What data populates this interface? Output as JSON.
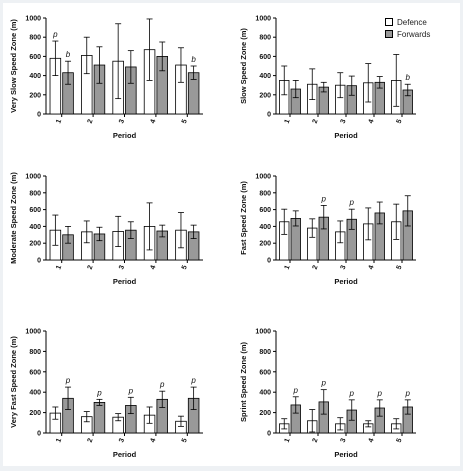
{
  "legend": {
    "defence_label": "Defence",
    "forwards_label": "Forwards",
    "colors": {
      "defence": "#ffffff",
      "forwards": "#999999"
    }
  },
  "chart_data": [
    {
      "type": "bar",
      "ylabel": "Very Slow Speed Zone (m)",
      "xlabel": "Period",
      "categories": [
        "1",
        "2",
        "3",
        "4",
        "5"
      ],
      "ylim": [
        0,
        1000
      ],
      "yticks": [
        0,
        200,
        400,
        600,
        800,
        1000
      ],
      "series": [
        {
          "name": "Defence",
          "values": [
            580,
            610,
            550,
            670,
            510
          ],
          "errors": [
            180,
            190,
            390,
            320,
            180
          ]
        },
        {
          "name": "Forwards",
          "values": [
            430,
            510,
            490,
            600,
            430
          ],
          "errors": [
            120,
            190,
            170,
            150,
            70
          ]
        }
      ],
      "annotations": [
        {
          "category": "1",
          "series": "Defence",
          "text": "p"
        },
        {
          "category": "1",
          "series": "Forwards",
          "text": "b"
        },
        {
          "category": "5",
          "series": "Forwards",
          "text": "b"
        }
      ]
    },
    {
      "type": "bar",
      "ylabel": "Slow Speed Zone (m)",
      "xlabel": "Period",
      "categories": [
        "1",
        "2",
        "3",
        "4",
        "5"
      ],
      "ylim": [
        0,
        1000
      ],
      "yticks": [
        0,
        200,
        400,
        600,
        800,
        1000
      ],
      "series": [
        {
          "name": "Defence",
          "values": [
            350,
            310,
            300,
            325,
            350
          ],
          "errors": [
            150,
            160,
            130,
            200,
            270
          ]
        },
        {
          "name": "Forwards",
          "values": [
            260,
            280,
            295,
            330,
            250
          ],
          "errors": [
            90,
            50,
            100,
            60,
            60
          ]
        }
      ],
      "annotations": [
        {
          "category": "5",
          "series": "Forwards",
          "text": "b"
        }
      ]
    },
    {
      "type": "bar",
      "ylabel": "Moderate Speed Zone (m)",
      "xlabel": "Period",
      "categories": [
        "1",
        "2",
        "3",
        "4",
        "5"
      ],
      "ylim": [
        0,
        1000
      ],
      "yticks": [
        0,
        200,
        400,
        600,
        800,
        1000
      ],
      "series": [
        {
          "name": "Defence",
          "values": [
            355,
            335,
            340,
            400,
            355
          ],
          "errors": [
            180,
            130,
            180,
            280,
            210
          ]
        },
        {
          "name": "Forwards",
          "values": [
            300,
            310,
            355,
            345,
            335
          ],
          "errors": [
            100,
            80,
            100,
            70,
            80
          ]
        }
      ],
      "annotations": []
    },
    {
      "type": "bar",
      "ylabel": "Fast Speed Zone (m)",
      "xlabel": "Period",
      "categories": [
        "1",
        "2",
        "3",
        "4",
        "5"
      ],
      "ylim": [
        0,
        1000
      ],
      "yticks": [
        0,
        200,
        400,
        600,
        800,
        1000
      ],
      "series": [
        {
          "name": "Defence",
          "values": [
            455,
            380,
            335,
            430,
            455
          ],
          "errors": [
            150,
            110,
            130,
            190,
            210
          ]
        },
        {
          "name": "Forwards",
          "values": [
            495,
            510,
            485,
            560,
            585
          ],
          "errors": [
            90,
            140,
            120,
            130,
            180
          ]
        }
      ],
      "annotations": [
        {
          "category": "2",
          "series": "Forwards",
          "text": "p"
        },
        {
          "category": "3",
          "series": "Forwards",
          "text": "p"
        }
      ]
    },
    {
      "type": "bar",
      "ylabel": "Very Fast Speed Zone (m)",
      "xlabel": "Period",
      "categories": [
        "1",
        "2",
        "3",
        "4",
        "5"
      ],
      "ylim": [
        0,
        1000
      ],
      "yticks": [
        0,
        200,
        400,
        600,
        800,
        1000
      ],
      "series": [
        {
          "name": "Defence",
          "values": [
            195,
            160,
            155,
            175,
            115
          ],
          "errors": [
            60,
            50,
            35,
            80,
            50
          ]
        },
        {
          "name": "Forwards",
          "values": [
            340,
            300,
            270,
            330,
            340
          ],
          "errors": [
            110,
            30,
            80,
            80,
            110
          ]
        }
      ],
      "annotations": [
        {
          "category": "1",
          "series": "Forwards",
          "text": "p"
        },
        {
          "category": "2",
          "series": "Forwards",
          "text": "p"
        },
        {
          "category": "3",
          "series": "Forwards",
          "text": "p"
        },
        {
          "category": "4",
          "series": "Forwards",
          "text": "p"
        },
        {
          "category": "5",
          "series": "Forwards",
          "text": "p"
        }
      ]
    },
    {
      "type": "bar",
      "ylabel": "Sprint Speed Zone (m)",
      "xlabel": "Period",
      "categories": [
        "1",
        "2",
        "3",
        "4",
        "5"
      ],
      "ylim": [
        0,
        1000
      ],
      "yticks": [
        0,
        200,
        400,
        600,
        800,
        1000
      ],
      "series": [
        {
          "name": "Defence",
          "values": [
            90,
            120,
            90,
            90,
            90
          ],
          "errors": [
            50,
            110,
            60,
            30,
            50
          ]
        },
        {
          "name": "Forwards",
          "values": [
            275,
            305,
            225,
            245,
            255
          ],
          "errors": [
            80,
            120,
            100,
            80,
            70
          ]
        }
      ],
      "annotations": [
        {
          "category": "1",
          "series": "Forwards",
          "text": "p"
        },
        {
          "category": "2",
          "series": "Forwards",
          "text": "p"
        },
        {
          "category": "3",
          "series": "Forwards",
          "text": "p"
        },
        {
          "category": "4",
          "series": "Forwards",
          "text": "p"
        },
        {
          "category": "5",
          "series": "Forwards",
          "text": "p"
        }
      ]
    }
  ]
}
